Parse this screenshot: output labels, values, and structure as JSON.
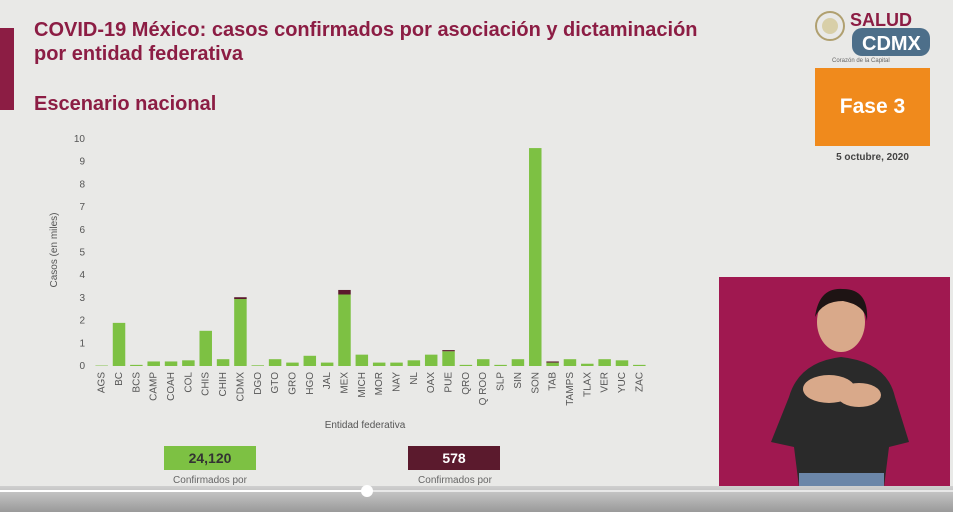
{
  "title": "COVID-19 México: casos confirmados por asociación y dictaminación por entidad federativa",
  "subtitle": "Escenario nacional",
  "logo": {
    "text": "SALUD",
    "caption": "Corazón de la Capital"
  },
  "phase": {
    "label": "Fase 3",
    "date": "5 octubre, 2020"
  },
  "legend": {
    "association": {
      "value": "24,120",
      "label": "Confirmados por asociación",
      "color": "#7dc143"
    },
    "dictamination": {
      "value": "578",
      "label": "Confirmados por dictaminación",
      "color": "#5b1a2d"
    }
  },
  "chart_data": {
    "type": "bar",
    "stacked": true,
    "xlabel": "Entidad federativa",
    "ylabel": "Casos (en miles)",
    "ylim": [
      0,
      10
    ],
    "yticks": [
      0,
      1,
      2,
      3,
      4,
      5,
      6,
      7,
      8,
      9,
      10
    ],
    "categories": [
      "AGS",
      "BC",
      "BCS",
      "CAMP",
      "COAH",
      "COL",
      "CHIS",
      "CHIH",
      "CDMX",
      "DGO",
      "GTO",
      "GRO",
      "HGO",
      "JAL",
      "MEX",
      "MICH",
      "MOR",
      "NAY",
      "NL",
      "OAX",
      "PUE",
      "QRO",
      "Q ROO",
      "SLP",
      "SIN",
      "SON",
      "TAB",
      "TAMPS",
      "TLAX",
      "VER",
      "YUC",
      "ZAC"
    ],
    "series": [
      {
        "name": "Confirmados por asociación",
        "color": "#7dc143",
        "values": [
          0.02,
          1.9,
          0.05,
          0.2,
          0.2,
          0.25,
          1.55,
          0.3,
          2.95,
          0.03,
          0.3,
          0.15,
          0.45,
          0.15,
          3.15,
          0.5,
          0.15,
          0.15,
          0.25,
          0.5,
          0.65,
          0.05,
          0.3,
          0.05,
          0.3,
          9.6,
          0.15,
          0.3,
          0.1,
          0.3,
          0.25,
          0.05
        ]
      },
      {
        "name": "Confirmados por dictaminación",
        "color": "#5b1a2d",
        "values": [
          0,
          0,
          0,
          0,
          0,
          0,
          0,
          0,
          0.08,
          0,
          0,
          0,
          0,
          0,
          0.2,
          0,
          0,
          0,
          0,
          0,
          0.05,
          0,
          0,
          0,
          0,
          0,
          0.05,
          0,
          0,
          0,
          0,
          0
        ]
      }
    ]
  }
}
